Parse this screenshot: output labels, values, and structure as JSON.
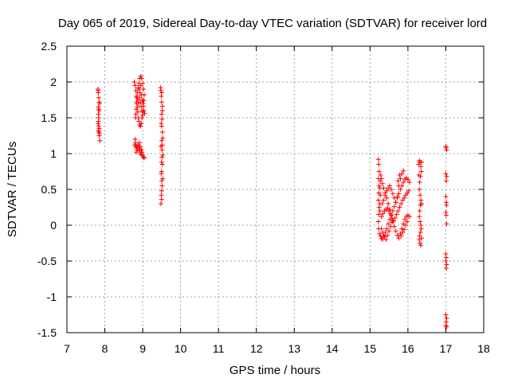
{
  "chart_data": {
    "type": "scatter",
    "title": "Day 065 of 2019, Sidereal Day-to-day VTEC variation (SDTVAR) for receiver lord",
    "xlabel": "GPS time / hours",
    "ylabel": "SDTVAR / TECUs",
    "xlim": [
      7,
      18
    ],
    "ylim": [
      -1.5,
      2.5
    ],
    "xticks": [
      "7",
      "8",
      "9",
      "10",
      "11",
      "12",
      "13",
      "14",
      "15",
      "16",
      "17",
      "18"
    ],
    "yticks": [
      "-1.5",
      "-1",
      "-0.5",
      "0",
      "0.5",
      "1",
      "1.5",
      "2",
      "2.5"
    ],
    "grid": true,
    "marker": "+",
    "color": "#ff0000",
    "series": [
      {
        "name": "SDTVAR",
        "points": [
          [
            7.82,
            1.9
          ],
          [
            7.83,
            1.85
          ],
          [
            7.84,
            1.78
          ],
          [
            7.85,
            1.72
          ],
          [
            7.83,
            1.65
          ],
          [
            7.84,
            1.62
          ],
          [
            7.85,
            1.6
          ],
          [
            7.83,
            1.55
          ],
          [
            7.84,
            1.5
          ],
          [
            7.83,
            1.45
          ],
          [
            7.82,
            1.42
          ],
          [
            7.84,
            1.38
          ],
          [
            7.85,
            1.35
          ],
          [
            7.83,
            1.32
          ],
          [
            7.86,
            1.28
          ],
          [
            7.85,
            1.25
          ],
          [
            7.87,
            1.18
          ],
          [
            7.82,
            1.88
          ],
          [
            7.86,
            1.7
          ],
          [
            7.84,
            1.3
          ],
          [
            8.78,
            2.0
          ],
          [
            8.8,
            1.95
          ],
          [
            8.82,
            1.88
          ],
          [
            8.83,
            1.8
          ],
          [
            8.84,
            1.72
          ],
          [
            8.86,
            1.65
          ],
          [
            8.87,
            1.58
          ],
          [
            8.88,
            1.5
          ],
          [
            8.9,
            1.45
          ],
          [
            8.92,
            1.4
          ],
          [
            8.94,
            1.38
          ],
          [
            8.96,
            1.42
          ],
          [
            8.98,
            1.5
          ],
          [
            9.0,
            1.58
          ],
          [
            9.02,
            1.66
          ],
          [
            9.03,
            1.74
          ],
          [
            9.04,
            1.82
          ],
          [
            9.02,
            1.9
          ],
          [
            9.0,
            1.98
          ],
          [
            8.97,
            2.05
          ],
          [
            8.95,
            2.08
          ],
          [
            8.92,
            2.05
          ],
          [
            8.9,
            1.98
          ],
          [
            8.88,
            1.92
          ],
          [
            8.86,
            1.85
          ],
          [
            8.85,
            1.78
          ],
          [
            8.84,
            1.7
          ],
          [
            8.83,
            1.62
          ],
          [
            8.82,
            1.55
          ],
          [
            8.81,
            1.5
          ],
          [
            8.92,
            1.78
          ],
          [
            8.94,
            1.72
          ],
          [
            8.96,
            1.66
          ],
          [
            8.98,
            1.6
          ],
          [
            9.0,
            1.54
          ],
          [
            8.93,
            1.85
          ],
          [
            8.91,
            1.9
          ],
          [
            8.95,
            1.95
          ],
          [
            8.99,
            1.75
          ],
          [
            9.01,
            1.7
          ],
          [
            8.97,
            1.82
          ],
          [
            8.89,
            1.7
          ],
          [
            8.87,
            1.75
          ],
          [
            9.03,
            1.6
          ],
          [
            9.05,
            1.56
          ],
          [
            8.8,
            1.2
          ],
          [
            8.81,
            1.15
          ],
          [
            8.82,
            1.1
          ],
          [
            8.84,
            1.08
          ],
          [
            8.86,
            1.05
          ],
          [
            8.88,
            1.12
          ],
          [
            8.9,
            1.08
          ],
          [
            8.92,
            1.04
          ],
          [
            8.94,
            1.0
          ],
          [
            8.96,
            1.06
          ],
          [
            8.98,
            1.02
          ],
          [
            9.0,
            0.98
          ],
          [
            9.02,
            0.95
          ],
          [
            9.04,
            0.94
          ],
          [
            8.85,
            1.1
          ],
          [
            8.91,
            1.15
          ],
          [
            8.93,
            1.1
          ],
          [
            8.97,
            0.98
          ],
          [
            8.83,
            1.02
          ],
          [
            8.79,
            1.12
          ],
          [
            9.47,
            1.92
          ],
          [
            9.48,
            1.88
          ],
          [
            9.5,
            1.85
          ],
          [
            9.49,
            1.8
          ],
          [
            9.5,
            1.72
          ],
          [
            9.52,
            1.66
          ],
          [
            9.5,
            1.55
          ],
          [
            9.51,
            1.48
          ],
          [
            9.49,
            1.42
          ],
          [
            9.5,
            1.38
          ],
          [
            9.52,
            1.3
          ],
          [
            9.53,
            1.22
          ],
          [
            9.5,
            1.18
          ],
          [
            9.52,
            1.12
          ],
          [
            9.51,
            1.05
          ],
          [
            9.53,
            0.98
          ],
          [
            9.5,
            0.88
          ],
          [
            9.52,
            0.85
          ],
          [
            9.5,
            0.75
          ],
          [
            9.49,
            0.72
          ],
          [
            9.53,
            0.65
          ],
          [
            9.51,
            0.55
          ],
          [
            9.5,
            0.48
          ],
          [
            9.49,
            0.42
          ],
          [
            9.5,
            0.36
          ],
          [
            9.48,
            0.3
          ],
          [
            9.51,
            0.95
          ],
          [
            9.52,
            1.6
          ],
          [
            9.48,
            1.1
          ],
          [
            9.5,
            0.62
          ],
          [
            15.22,
            0.92
          ],
          [
            15.23,
            0.85
          ],
          [
            15.24,
            0.75
          ],
          [
            15.22,
            0.65
          ],
          [
            15.24,
            0.55
          ],
          [
            15.23,
            0.45
          ],
          [
            15.22,
            0.35
          ],
          [
            15.24,
            0.25
          ],
          [
            15.23,
            0.15
          ],
          [
            15.22,
            0.05
          ],
          [
            15.23,
            -0.05
          ],
          [
            15.25,
            -0.12
          ],
          [
            15.28,
            -0.15
          ],
          [
            15.3,
            -0.18
          ],
          [
            15.33,
            -0.2
          ],
          [
            15.36,
            -0.15
          ],
          [
            15.4,
            -0.1
          ],
          [
            15.44,
            -0.05
          ],
          [
            15.48,
            0.02
          ],
          [
            15.52,
            0.08
          ],
          [
            15.56,
            0.14
          ],
          [
            15.6,
            0.2
          ],
          [
            15.64,
            0.26
          ],
          [
            15.68,
            0.32
          ],
          [
            15.72,
            0.38
          ],
          [
            15.76,
            0.44
          ],
          [
            15.8,
            0.5
          ],
          [
            15.84,
            0.55
          ],
          [
            15.88,
            0.6
          ],
          [
            15.92,
            0.64
          ],
          [
            15.96,
            0.66
          ],
          [
            16.0,
            0.64
          ],
          [
            16.04,
            0.6
          ],
          [
            15.28,
            0.7
          ],
          [
            15.3,
            0.65
          ],
          [
            15.33,
            0.58
          ],
          [
            15.36,
            0.52
          ],
          [
            15.4,
            0.45
          ],
          [
            15.44,
            0.38
          ],
          [
            15.48,
            0.3
          ],
          [
            15.52,
            0.22
          ],
          [
            15.56,
            0.14
          ],
          [
            15.6,
            0.06
          ],
          [
            15.64,
            -0.02
          ],
          [
            15.68,
            -0.08
          ],
          [
            15.72,
            -0.14
          ],
          [
            15.76,
            -0.18
          ],
          [
            15.8,
            -0.12
          ],
          [
            15.84,
            -0.05
          ],
          [
            15.88,
            0.02
          ],
          [
            15.92,
            0.08
          ],
          [
            15.96,
            0.12
          ],
          [
            16.0,
            0.14
          ],
          [
            16.04,
            0.12
          ],
          [
            15.3,
            0.12
          ],
          [
            15.34,
            0.16
          ],
          [
            15.38,
            0.2
          ],
          [
            15.42,
            0.22
          ],
          [
            15.46,
            0.24
          ],
          [
            15.5,
            0.2
          ],
          [
            15.54,
            0.16
          ],
          [
            15.58,
            0.1
          ],
          [
            15.62,
            0.06
          ],
          [
            15.66,
            0.1
          ],
          [
            15.7,
            0.15
          ],
          [
            15.74,
            0.2
          ],
          [
            15.78,
            0.25
          ],
          [
            15.82,
            0.3
          ],
          [
            15.86,
            0.35
          ],
          [
            15.9,
            0.38
          ],
          [
            15.94,
            0.42
          ],
          [
            15.98,
            0.45
          ],
          [
            16.02,
            0.48
          ],
          [
            15.32,
            0.3
          ],
          [
            15.36,
            0.35
          ],
          [
            15.4,
            0.42
          ],
          [
            15.44,
            0.48
          ],
          [
            15.48,
            0.52
          ],
          [
            15.52,
            0.55
          ],
          [
            15.56,
            0.5
          ],
          [
            15.6,
            0.44
          ],
          [
            15.64,
            0.38
          ],
          [
            15.68,
            0.32
          ],
          [
            15.72,
            0.4
          ],
          [
            15.76,
            0.55
          ],
          [
            15.8,
            0.65
          ],
          [
            15.84,
            0.72
          ],
          [
            15.88,
            0.76
          ],
          [
            15.78,
            0.7
          ],
          [
            15.74,
            0.62
          ],
          [
            15.3,
            -0.05
          ],
          [
            15.34,
            -0.1
          ],
          [
            15.38,
            -0.16
          ],
          [
            15.42,
            -0.2
          ],
          [
            15.46,
            -0.14
          ],
          [
            15.5,
            -0.08
          ],
          [
            15.54,
            -0.02
          ],
          [
            15.58,
            0.04
          ],
          [
            15.26,
            0.3
          ],
          [
            15.27,
            0.42
          ],
          [
            15.26,
            0.52
          ],
          [
            15.27,
            0.62
          ],
          [
            15.26,
            0.2
          ],
          [
            15.82,
            -0.15
          ],
          [
            15.86,
            -0.1
          ],
          [
            15.9,
            -0.06
          ],
          [
            15.94,
            0.0
          ],
          [
            15.98,
            0.05
          ],
          [
            16.28,
            0.85
          ],
          [
            16.3,
            0.9
          ],
          [
            16.32,
            0.88
          ],
          [
            16.34,
            0.82
          ],
          [
            16.35,
            0.75
          ],
          [
            16.33,
            0.68
          ],
          [
            16.31,
            0.6
          ],
          [
            16.3,
            0.5
          ],
          [
            16.32,
            0.42
          ],
          [
            16.34,
            0.35
          ],
          [
            16.33,
            0.28
          ],
          [
            16.31,
            0.2
          ],
          [
            16.3,
            0.12
          ],
          [
            16.32,
            0.05
          ],
          [
            16.34,
            0.0
          ],
          [
            16.35,
            -0.05
          ],
          [
            16.33,
            -0.1
          ],
          [
            16.31,
            -0.15
          ],
          [
            16.3,
            -0.2
          ],
          [
            16.32,
            -0.25
          ],
          [
            16.34,
            -0.28
          ],
          [
            16.36,
            0.88
          ],
          [
            16.36,
            -0.18
          ],
          [
            16.29,
            0.7
          ],
          [
            16.36,
            0.3
          ],
          [
            17.0,
            1.1
          ],
          [
            17.02,
            1.05
          ],
          [
            17.01,
            1.08
          ],
          [
            17.0,
            0.72
          ],
          [
            17.02,
            0.68
          ],
          [
            17.01,
            0.62
          ],
          [
            17.0,
            0.4
          ],
          [
            17.01,
            0.32
          ],
          [
            17.02,
            0.28
          ],
          [
            17.0,
            0.18
          ],
          [
            17.01,
            0.14
          ],
          [
            17.02,
            0.02
          ],
          [
            17.0,
            -0.4
          ],
          [
            17.01,
            -0.45
          ],
          [
            17.0,
            -0.5
          ],
          [
            17.02,
            -0.55
          ],
          [
            17.01,
            -0.6
          ],
          [
            17.0,
            -1.25
          ],
          [
            17.02,
            -1.3
          ],
          [
            17.01,
            -1.35
          ],
          [
            17.0,
            -1.4
          ],
          [
            17.02,
            -1.42
          ]
        ]
      }
    ]
  }
}
